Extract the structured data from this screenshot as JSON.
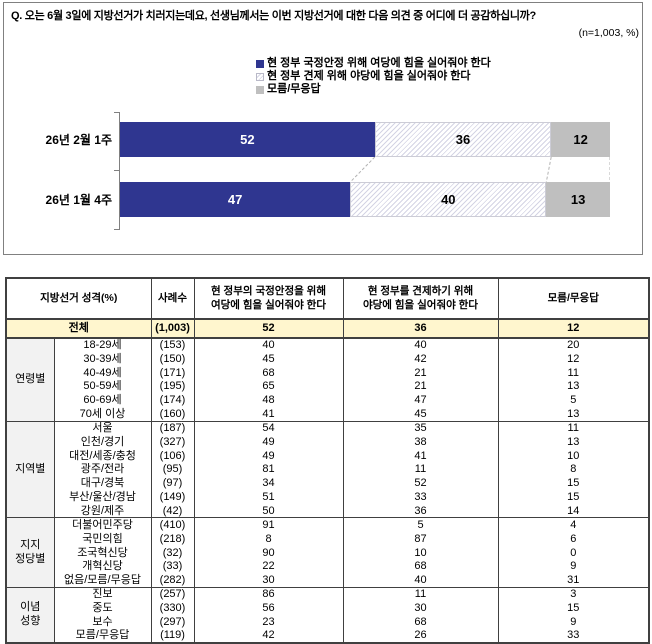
{
  "colors": {
    "navy": "#2F3690",
    "gray": "#BFBFBF",
    "hatch_stripe": "#D4D4E4",
    "total_row_bg": "#FFF6CE",
    "group_col_bg": "#F2F2F2",
    "border_dark": "#404040"
  },
  "question": {
    "text": "Q. 오는 6월 3일에 지방선거가 치러지는데요, 선생님께서는 이번 지방선거에 대한 다음 의견 중 어디에 더 공감하십니까?",
    "sample_note": "(n=1,003, %)"
  },
  "chart_data": {
    "type": "bar",
    "stacked": true,
    "orientation": "horizontal",
    "xlim": [
      0,
      100
    ],
    "legend_position": "top-right",
    "categories": [
      "26년 2월 1주",
      "26년 1월 4주"
    ],
    "series": [
      {
        "name": "현 정부 국정안정 위해 여당에 힘을 실어줘야 한다",
        "style": "solid-navy",
        "values": [
          52,
          47
        ]
      },
      {
        "name": "현 정부 견제 위해 야당에 힘을 실어줘야 한다",
        "style": "hatch",
        "values": [
          36,
          40
        ]
      },
      {
        "name": "모름/무응답",
        "style": "solid-gray",
        "values": [
          12,
          13
        ]
      }
    ]
  },
  "table": {
    "headers": {
      "col1": "지방선거 성격(%)",
      "col2": "사례수",
      "col3": "현 정부의 국정안정을 위해\n여당에 힘을 실어줘야 한다",
      "col4": "현 정부를 견제하기 위해\n야당에 힘을 실어줘야 한다",
      "col5": "모름/무응답"
    },
    "total": {
      "label": "전체",
      "n": "(1,003)",
      "values": [
        "52",
        "36",
        "12"
      ]
    },
    "groups": [
      {
        "name": "연령별",
        "rows": [
          {
            "label": "18-29세",
            "n": "(153)",
            "values": [
              "40",
              "40",
              "20"
            ]
          },
          {
            "label": "30-39세",
            "n": "(150)",
            "values": [
              "45",
              "42",
              "12"
            ]
          },
          {
            "label": "40-49세",
            "n": "(171)",
            "values": [
              "68",
              "21",
              "11"
            ]
          },
          {
            "label": "50-59세",
            "n": "(195)",
            "values": [
              "65",
              "21",
              "13"
            ]
          },
          {
            "label": "60-69세",
            "n": "(174)",
            "values": [
              "48",
              "47",
              "5"
            ]
          },
          {
            "label": "70세 이상",
            "n": "(160)",
            "values": [
              "41",
              "45",
              "13"
            ]
          }
        ]
      },
      {
        "name": "지역별",
        "rows": [
          {
            "label": "서울",
            "n": "(187)",
            "values": [
              "54",
              "35",
              "11"
            ]
          },
          {
            "label": "인천/경기",
            "n": "(327)",
            "values": [
              "49",
              "38",
              "13"
            ]
          },
          {
            "label": "대전/세종/충청",
            "n": "(106)",
            "values": [
              "49",
              "41",
              "10"
            ]
          },
          {
            "label": "광주/전라",
            "n": "(95)",
            "values": [
              "81",
              "11",
              "8"
            ]
          },
          {
            "label": "대구/경북",
            "n": "(97)",
            "values": [
              "34",
              "52",
              "15"
            ]
          },
          {
            "label": "부산/울산/경남",
            "n": "(149)",
            "values": [
              "51",
              "33",
              "15"
            ]
          },
          {
            "label": "강원/제주",
            "n": "(42)",
            "values": [
              "50",
              "36",
              "14"
            ]
          }
        ]
      },
      {
        "name": "지지\n정당별",
        "rows": [
          {
            "label": "더불어민주당",
            "n": "(410)",
            "values": [
              "91",
              "5",
              "4"
            ]
          },
          {
            "label": "국민의힘",
            "n": "(218)",
            "values": [
              "8",
              "87",
              "6"
            ]
          },
          {
            "label": "조국혁신당",
            "n": "(32)",
            "values": [
              "90",
              "10",
              "0"
            ]
          },
          {
            "label": "개혁신당",
            "n": "(33)",
            "values": [
              "22",
              "68",
              "9"
            ]
          },
          {
            "label": "없음/모름/무응답",
            "n": "(282)",
            "values": [
              "30",
              "40",
              "31"
            ]
          }
        ]
      },
      {
        "name": "이념\n성향",
        "rows": [
          {
            "label": "진보",
            "n": "(257)",
            "values": [
              "86",
              "11",
              "3"
            ]
          },
          {
            "label": "중도",
            "n": "(330)",
            "values": [
              "56",
              "30",
              "15"
            ]
          },
          {
            "label": "보수",
            "n": "(297)",
            "values": [
              "23",
              "68",
              "9"
            ]
          },
          {
            "label": "모름/무응답",
            "n": "(119)",
            "values": [
              "42",
              "26",
              "33"
            ]
          }
        ]
      }
    ]
  }
}
